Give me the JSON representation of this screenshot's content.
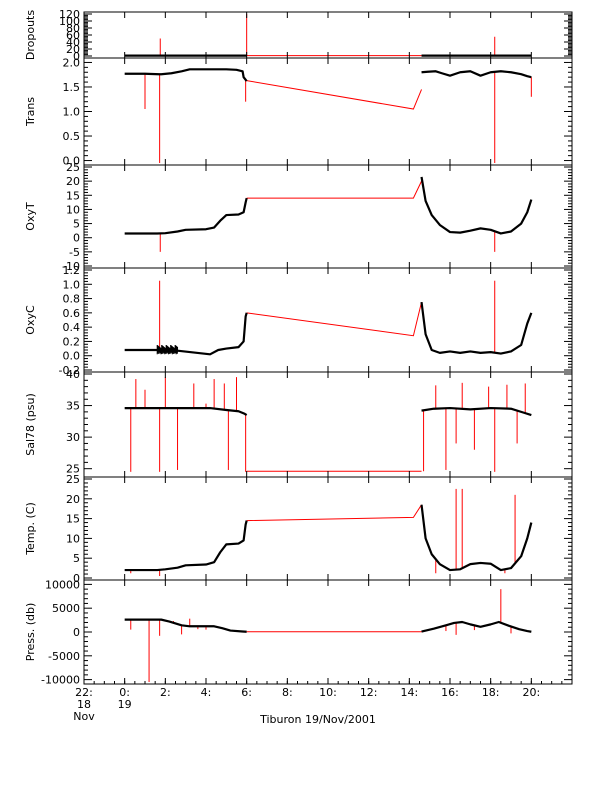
{
  "figure": {
    "caption": "Tiburon 19/Nov/2001",
    "x_axis": {
      "range_hours": [
        -2,
        22
      ],
      "ticks": [
        {
          "value": -2,
          "label": "22:",
          "sub1": "18",
          "sub2": "Nov"
        },
        {
          "value": 0,
          "label": "0:",
          "sub1": "19",
          "sub2": ""
        },
        {
          "value": 2,
          "label": "2:",
          "sub1": "",
          "sub2": ""
        },
        {
          "value": 4,
          "label": "4:",
          "sub1": "",
          "sub2": ""
        },
        {
          "value": 6,
          "label": "6:",
          "sub1": "",
          "sub2": ""
        },
        {
          "value": 8,
          "label": "8:",
          "sub1": "",
          "sub2": ""
        },
        {
          "value": 10,
          "label": "10:",
          "sub1": "",
          "sub2": ""
        },
        {
          "value": 12,
          "label": "12:",
          "sub1": "",
          "sub2": ""
        },
        {
          "value": 14,
          "label": "14:",
          "sub1": "",
          "sub2": ""
        },
        {
          "value": 16,
          "label": "16:",
          "sub1": "",
          "sub2": ""
        },
        {
          "value": 18,
          "label": "18:",
          "sub1": "",
          "sub2": ""
        },
        {
          "value": 20,
          "label": "20:",
          "sub1": "",
          "sub2": ""
        }
      ]
    },
    "colors": {
      "measured": "#000000",
      "gap_fill": "#ff0000",
      "axis": "#000000"
    }
  },
  "chart_data": [
    {
      "type": "line",
      "ylabel": "Dropouts",
      "ylim": [
        0,
        120
      ],
      "yticks": [
        {
          "v": 0,
          "l": "0"
        },
        {
          "v": 20,
          "l": "20"
        },
        {
          "v": 40,
          "l": "40"
        },
        {
          "v": 60,
          "l": "60"
        },
        {
          "v": 80,
          "l": "80"
        },
        {
          "v": 100,
          "l": "100"
        },
        {
          "v": 120,
          "l": "120"
        }
      ],
      "measured": [
        {
          "x": [
            0.0,
            6.0
          ],
          "y": [
            1,
            1
          ]
        },
        {
          "x": [
            14.6,
            20.0
          ],
          "y": [
            1,
            1
          ]
        }
      ],
      "gap_line": {
        "x": [
          6.0,
          14.6
        ],
        "y": [
          1,
          1
        ]
      },
      "spikes": [
        {
          "x": 1.75,
          "y": 50
        },
        {
          "x": 6.0,
          "y": 120
        },
        {
          "x": 18.2,
          "y": 55
        }
      ]
    },
    {
      "type": "line",
      "ylabel": "Trans",
      "ylim": [
        -0.05,
        2.05
      ],
      "yticks": [
        {
          "v": 0.0,
          "l": "0.0"
        },
        {
          "v": 0.5,
          "l": "0.5"
        },
        {
          "v": 1.0,
          "l": "1.0"
        },
        {
          "v": 1.5,
          "l": "1.5"
        },
        {
          "v": 2.0,
          "l": "2.0"
        }
      ],
      "measured": [
        {
          "x": [
            0.0,
            1.0,
            1.7,
            1.8,
            2.3,
            2.8,
            3.2,
            4.0,
            5.0,
            5.5,
            5.8,
            5.85,
            6.0
          ],
          "y": [
            1.77,
            1.77,
            1.76,
            1.76,
            1.78,
            1.82,
            1.86,
            1.86,
            1.86,
            1.85,
            1.82,
            1.7,
            1.62
          ]
        },
        {
          "x": [
            14.6,
            14.9,
            15.3,
            15.6,
            16.0,
            16.5,
            17.0,
            17.5,
            18.0,
            18.5,
            19.0,
            19.5,
            19.8,
            20.0
          ],
          "y": [
            1.8,
            1.81,
            1.82,
            1.78,
            1.73,
            1.8,
            1.82,
            1.73,
            1.8,
            1.82,
            1.8,
            1.76,
            1.72,
            1.7
          ]
        }
      ],
      "gap_line": {
        "x": [
          6.0,
          14.2,
          14.6
        ],
        "y": [
          1.63,
          1.05,
          1.45
        ]
      },
      "spikes": [
        {
          "x": 1.0,
          "y": 1.05
        },
        {
          "x": 1.72,
          "y": -0.05
        },
        {
          "x": 5.95,
          "y": 1.2
        },
        {
          "x": 18.2,
          "y": -0.05
        },
        {
          "x": 20.0,
          "y": 1.3
        }
      ]
    },
    {
      "type": "line",
      "ylabel": "OxyT",
      "ylim": [
        -10,
        25
      ],
      "yticks": [
        {
          "v": -10,
          "l": "-10"
        },
        {
          "v": -5,
          "l": "-5"
        },
        {
          "v": 0,
          "l": "0"
        },
        {
          "v": 5,
          "l": "5"
        },
        {
          "v": 10,
          "l": "10"
        },
        {
          "v": 15,
          "l": "15"
        },
        {
          "v": 20,
          "l": "20"
        },
        {
          "v": 25,
          "l": "25"
        }
      ],
      "measured": [
        {
          "x": [
            0.0,
            1.6,
            2.0,
            2.6,
            3.0,
            4.0,
            4.4,
            4.7,
            5.0,
            5.6,
            5.85,
            5.95,
            6.0
          ],
          "y": [
            1.5,
            1.5,
            1.6,
            2.2,
            2.8,
            3.0,
            3.6,
            6.0,
            8.0,
            8.2,
            9.0,
            12.5,
            14.0
          ]
        },
        {
          "x": [
            14.6,
            14.8,
            15.1,
            15.5,
            16.0,
            16.5,
            17.0,
            17.5,
            18.0,
            18.5,
            19.0,
            19.5,
            19.8,
            20.0
          ],
          "y": [
            21.5,
            13.0,
            8.0,
            4.5,
            2.0,
            1.8,
            2.5,
            3.3,
            2.8,
            1.5,
            2.2,
            5.0,
            9.0,
            13.5
          ]
        }
      ],
      "gap_line": {
        "x": [
          6.0,
          14.2,
          14.6
        ],
        "y": [
          14.0,
          14.0,
          20.0
        ]
      },
      "spikes": [
        {
          "x": 1.75,
          "y": -5
        },
        {
          "x": 18.2,
          "y": -5
        }
      ]
    },
    {
      "type": "line",
      "ylabel": "OxyC",
      "ylim": [
        -0.2,
        1.2
      ],
      "yticks": [
        {
          "v": -0.2,
          "l": "-0.2"
        },
        {
          "v": 0.0,
          "l": "0.0"
        },
        {
          "v": 0.2,
          "l": "0.2"
        },
        {
          "v": 0.4,
          "l": "0.4"
        },
        {
          "v": 0.6,
          "l": "0.6"
        },
        {
          "v": 0.8,
          "l": "0.8"
        },
        {
          "v": 1.0,
          "l": "1.0"
        },
        {
          "v": 1.2,
          "l": "1.2"
        }
      ],
      "measured": [
        {
          "x": [
            0.0,
            1.6,
            2.6,
            4.2,
            4.6,
            5.0,
            5.6,
            5.85,
            5.95,
            6.0
          ],
          "y": [
            0.08,
            0.08,
            0.07,
            0.02,
            0.08,
            0.1,
            0.12,
            0.2,
            0.55,
            0.6
          ]
        },
        {
          "x": [
            14.6,
            14.8,
            15.1,
            15.5,
            16.0,
            16.5,
            17.0,
            17.5,
            18.0,
            18.5,
            19.0,
            19.5,
            19.8,
            20.0
          ],
          "y": [
            0.75,
            0.3,
            0.08,
            0.04,
            0.06,
            0.04,
            0.06,
            0.04,
            0.05,
            0.03,
            0.06,
            0.15,
            0.45,
            0.6
          ]
        }
      ],
      "gap_line": {
        "x": [
          6.0,
          14.2,
          14.6
        ],
        "y": [
          0.6,
          0.28,
          0.75
        ]
      },
      "noise_band": {
        "x": [
          1.6,
          2.6
        ],
        "y": [
          0.02,
          0.15
        ]
      },
      "spikes": [
        {
          "x": 1.72,
          "y": 1.05
        },
        {
          "x": 18.2,
          "y": 1.05
        }
      ]
    },
    {
      "type": "line",
      "ylabel": "Sal78 (psu)",
      "ylim": [
        24,
        40
      ],
      "yticks": [
        {
          "v": 25,
          "l": "25"
        },
        {
          "v": 30,
          "l": "30"
        },
        {
          "v": 35,
          "l": "35"
        },
        {
          "v": 40,
          "l": "40"
        }
      ],
      "measured": [
        {
          "x": [
            0.0,
            4.2,
            5.0,
            5.6,
            5.9,
            6.0
          ],
          "y": [
            34.6,
            34.6,
            34.3,
            34.1,
            33.7,
            33.5
          ]
        },
        {
          "x": [
            14.6,
            15.2,
            16.0,
            17.0,
            18.0,
            19.0,
            19.6,
            20.0
          ],
          "y": [
            34.2,
            34.5,
            34.6,
            34.4,
            34.6,
            34.5,
            33.9,
            33.5
          ]
        }
      ],
      "gap_line": {
        "x": [
          6.0,
          14.6
        ],
        "y": [
          24.6,
          24.6
        ]
      },
      "spikes": [
        {
          "x": 0.3,
          "y": 24.5
        },
        {
          "x": 0.55,
          "y": 39.2
        },
        {
          "x": 1.0,
          "y": 37.5
        },
        {
          "x": 1.72,
          "y": 24.5
        },
        {
          "x": 2.0,
          "y": 39.5
        },
        {
          "x": 2.6,
          "y": 24.8
        },
        {
          "x": 3.4,
          "y": 38.5
        },
        {
          "x": 4.0,
          "y": 35.3
        },
        {
          "x": 4.4,
          "y": 39.2
        },
        {
          "x": 4.9,
          "y": 38.5
        },
        {
          "x": 5.1,
          "y": 24.8
        },
        {
          "x": 5.5,
          "y": 39.5
        },
        {
          "x": 5.95,
          "y": 24.5
        },
        {
          "x": 14.7,
          "y": 24.6
        },
        {
          "x": 15.3,
          "y": 38.2
        },
        {
          "x": 15.8,
          "y": 24.8
        },
        {
          "x": 16.3,
          "y": 29.0
        },
        {
          "x": 16.6,
          "y": 38.6
        },
        {
          "x": 17.2,
          "y": 28.0
        },
        {
          "x": 17.9,
          "y": 38.0
        },
        {
          "x": 18.2,
          "y": 24.5
        },
        {
          "x": 18.8,
          "y": 38.3
        },
        {
          "x": 19.3,
          "y": 29.0
        },
        {
          "x": 19.7,
          "y": 38.5
        }
      ]
    },
    {
      "type": "line",
      "ylabel": "Temp. (C)",
      "ylim": [
        0,
        25
      ],
      "yticks": [
        {
          "v": 0,
          "l": "0"
        },
        {
          "v": 5,
          "l": "5"
        },
        {
          "v": 10,
          "l": "10"
        },
        {
          "v": 15,
          "l": "15"
        },
        {
          "v": 20,
          "l": "20"
        },
        {
          "v": 25,
          "l": "25"
        }
      ],
      "measured": [
        {
          "x": [
            0.0,
            1.6,
            2.0,
            2.6,
            3.0,
            4.0,
            4.4,
            4.7,
            5.0,
            5.6,
            5.85,
            5.95,
            6.0
          ],
          "y": [
            2.0,
            2.0,
            2.2,
            2.6,
            3.2,
            3.4,
            4.0,
            6.5,
            8.5,
            8.7,
            9.5,
            13.5,
            14.5
          ]
        },
        {
          "x": [
            14.6,
            14.8,
            15.1,
            15.5,
            16.0,
            16.5,
            17.0,
            17.5,
            18.0,
            18.5,
            19.0,
            19.5,
            19.8,
            20.0
          ],
          "y": [
            18.5,
            10.0,
            6.0,
            3.5,
            2.0,
            2.2,
            3.5,
            3.8,
            3.6,
            2.0,
            2.5,
            5.5,
            10.0,
            14.0
          ]
        }
      ],
      "gap_line": {
        "x": [
          6.0,
          14.2,
          14.6
        ],
        "y": [
          14.5,
          15.3,
          18.5
        ]
      },
      "spikes": [
        {
          "x": 0.3,
          "y": 1.2
        },
        {
          "x": 1.72,
          "y": 0.5
        },
        {
          "x": 15.3,
          "y": 1.2
        },
        {
          "x": 16.3,
          "y": 22.5
        },
        {
          "x": 16.6,
          "y": 22.5
        },
        {
          "x": 18.7,
          "y": 1.2
        },
        {
          "x": 19.2,
          "y": 21.0
        }
      ]
    },
    {
      "type": "line",
      "ylabel": "Press. (db)",
      "ylim": [
        -10500,
        10500
      ],
      "yticks": [
        {
          "v": -10000,
          "l": "-10000"
        },
        {
          "v": -5000,
          "l": "-5000"
        },
        {
          "v": 0,
          "l": "0"
        },
        {
          "v": 5000,
          "l": "5000"
        },
        {
          "v": 10000,
          "l": "10000"
        }
      ],
      "measured": [
        {
          "x": [
            0.0,
            1.8,
            2.2,
            2.8,
            3.2,
            4.4,
            4.8,
            5.2,
            5.8,
            6.0
          ],
          "y": [
            2600,
            2600,
            2200,
            1400,
            1200,
            1200,
            800,
            300,
            100,
            50
          ]
        },
        {
          "x": [
            14.6,
            15.2,
            15.8,
            16.2,
            16.6,
            17.0,
            17.5,
            18.0,
            18.4,
            18.9,
            19.4,
            19.8,
            20.0
          ],
          "y": [
            100,
            700,
            1400,
            1900,
            2100,
            1600,
            1100,
            1600,
            2100,
            1300,
            600,
            200,
            50
          ]
        }
      ],
      "gap_line": {
        "x": [
          6.0,
          14.6
        ],
        "y": [
          60,
          60
        ]
      },
      "spikes": [
        {
          "x": 0.3,
          "y": 500
        },
        {
          "x": 1.72,
          "y": -800
        },
        {
          "x": 2.4,
          "y": 2300
        },
        {
          "x": 2.8,
          "y": -500
        },
        {
          "x": 3.2,
          "y": 2800
        },
        {
          "x": 3.6,
          "y": 600
        },
        {
          "x": 4.0,
          "y": 500
        },
        {
          "x": 15.8,
          "y": 200
        },
        {
          "x": 16.3,
          "y": -600
        },
        {
          "x": 17.2,
          "y": 400
        },
        {
          "x": 18.5,
          "y": 9000
        },
        {
          "x": 19.0,
          "y": -300
        }
      ],
      "big_spike": {
        "x": 1.2,
        "y": -10500
      }
    }
  ]
}
